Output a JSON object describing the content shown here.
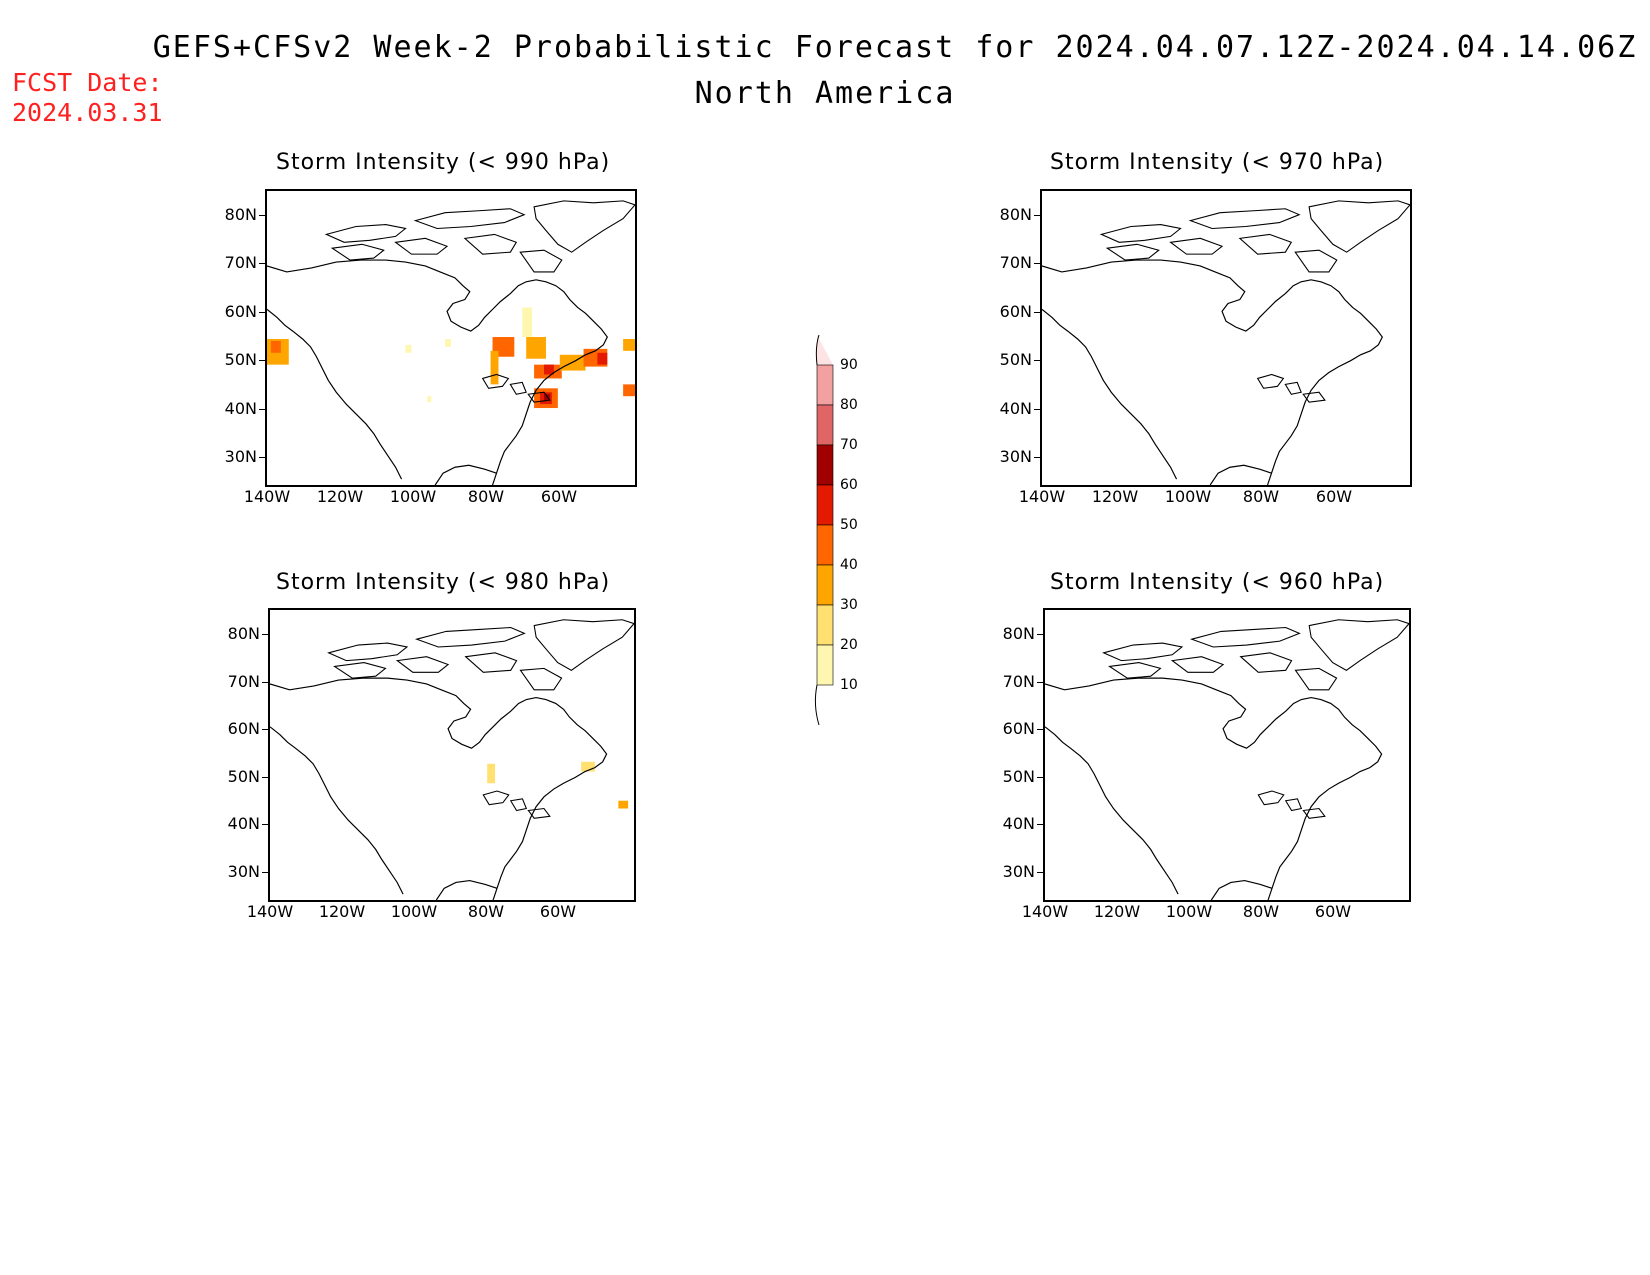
{
  "title": {
    "line1": "GEFS+CFSv2 Week-2 Probabilistic Forecast for 2024.04.07.12Z-2024.04.14.06Z",
    "line2": "North America"
  },
  "fcst_date": {
    "label": "FCST Date:",
    "value": "2024.03.31",
    "color": "#ff2020"
  },
  "axes": {
    "lat_labels": [
      "80N",
      "70N",
      "60N",
      "50N",
      "40N",
      "30N"
    ],
    "lon_labels": [
      "140W",
      "120W",
      "100W",
      "80W",
      "60W"
    ]
  },
  "panels": [
    {
      "id": "p990",
      "title": "Storm Intensity (< 990 hPa)"
    },
    {
      "id": "p970",
      "title": "Storm Intensity (< 970 hPa)"
    },
    {
      "id": "p980",
      "title": "Storm Intensity (< 980 hPa)"
    },
    {
      "id": "p960",
      "title": "Storm Intensity (< 960 hPa)"
    }
  ],
  "colorbar": {
    "labels": [
      "90",
      "80",
      "70",
      "60",
      "50",
      "40",
      "30",
      "20",
      "10"
    ],
    "colors": [
      "#fde3e3",
      "#f2a0a0",
      "#e06666",
      "#a00000",
      "#e41a00",
      "#ff6600",
      "#ffa500",
      "#ffe070",
      "#fff6b0"
    ]
  }
}
